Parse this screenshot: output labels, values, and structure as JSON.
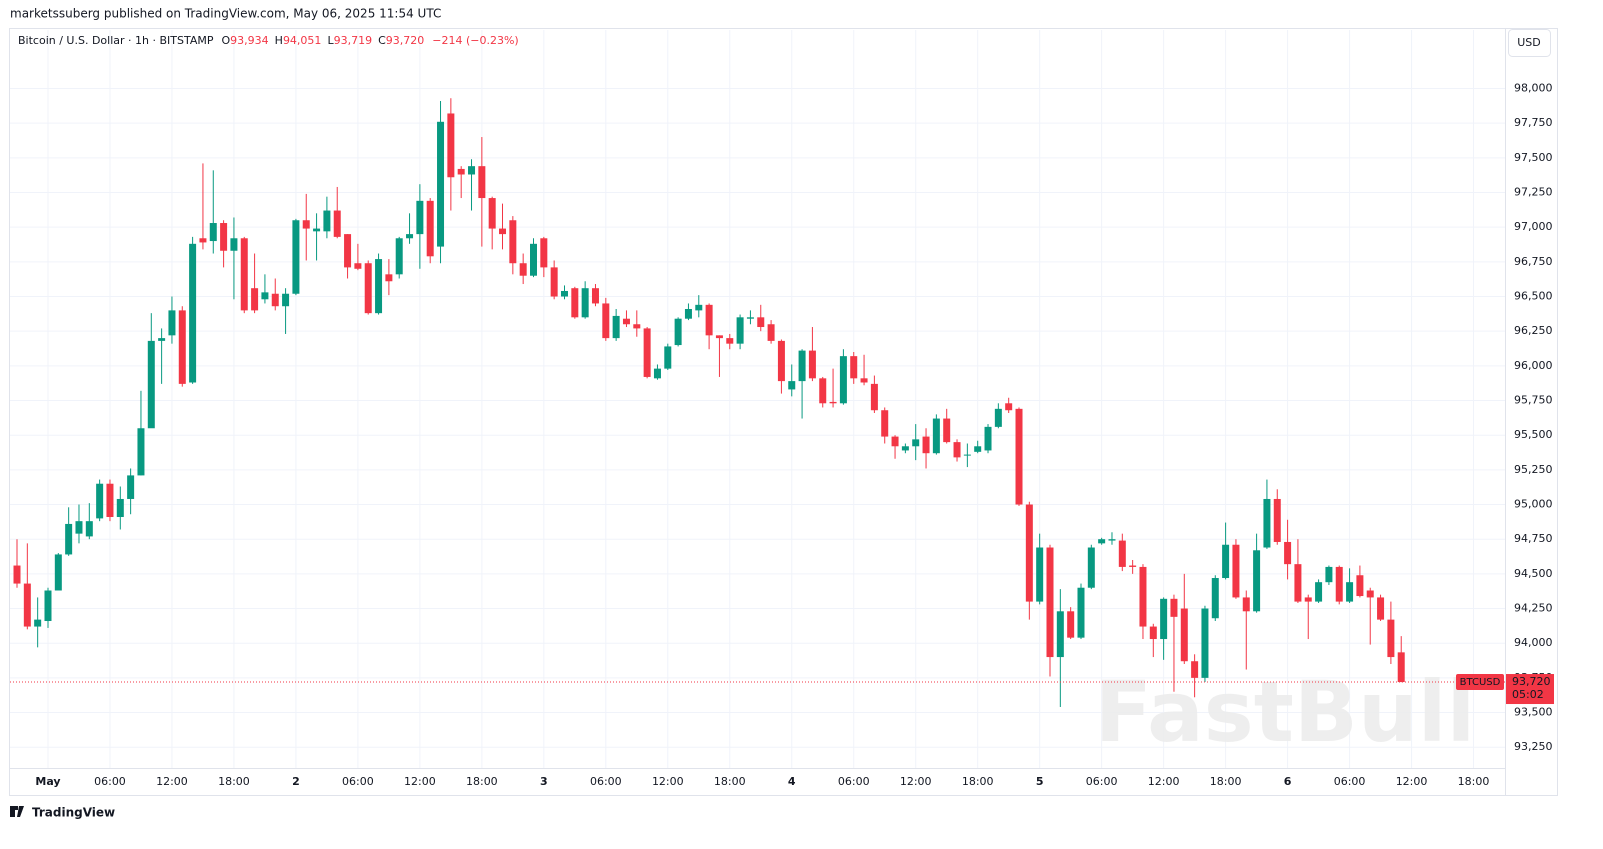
{
  "chart_data": {
    "type": "candlestick",
    "publisher": "marketssuberg published on TradingView.com, May 06, 2025 11:54 UTC",
    "title": "Bitcoin / U.S. Dollar · 1h · BITSTAMP",
    "ohlc_labels": [
      {
        "key": "O",
        "value": "93,934"
      },
      {
        "key": "H",
        "value": "94,051"
      },
      {
        "key": "L",
        "value": "93,719"
      },
      {
        "key": "C",
        "value": "93,720"
      }
    ],
    "change": "−214 (−0.23%)",
    "currency": "USD",
    "up_color": "#089981",
    "down_color": "#f23645",
    "grid": true,
    "categories": [
      null,
      null,
      null,
      "May",
      null,
      null,
      null,
      null,
      null,
      "06:00",
      null,
      null,
      null,
      null,
      null,
      "12:00",
      null,
      null,
      null,
      null,
      null,
      "18:00",
      null,
      null,
      null,
      null,
      null,
      "2",
      null,
      null,
      null,
      null,
      null,
      "06:00",
      null,
      null,
      null,
      null,
      null,
      "12:00",
      null,
      null,
      null,
      null,
      null,
      "18:00",
      null,
      null,
      null,
      null,
      null,
      "3",
      null,
      null,
      null,
      null,
      null,
      "06:00",
      null,
      null,
      null,
      null,
      null,
      "12:00",
      null,
      null,
      null,
      null,
      null,
      "18:00",
      null,
      null,
      null,
      null,
      null,
      "4",
      null,
      null,
      null,
      null,
      null,
      "06:00",
      null,
      null,
      null,
      null,
      null,
      "12:00",
      null,
      null,
      null,
      null,
      null,
      "18:00",
      null,
      null,
      null,
      null,
      null,
      "5",
      null,
      null,
      null,
      null,
      null,
      "06:00",
      null,
      null,
      null,
      null,
      null,
      "12:00",
      null,
      null,
      null,
      null,
      null,
      "18:00",
      null,
      null,
      null,
      null,
      null,
      "6",
      null,
      null,
      null,
      null,
      null,
      "06:00",
      null,
      null,
      null,
      null,
      null,
      "12:00",
      null,
      null,
      null,
      null,
      null,
      "18:00",
      null,
      null
    ],
    "open": [
      94560,
      94430,
      94120,
      94160,
      94380,
      94640,
      94790,
      94770,
      94900,
      95150,
      94910,
      95040,
      95210,
      95550,
      96180,
      96220,
      96400,
      95880,
      96920,
      96900,
      97030,
      96830,
      96920,
      96560,
      96480,
      96520,
      96430,
      96520,
      97050,
      96970,
      96970,
      97120,
      96950,
      96740,
      96740,
      96380,
      96660,
      96660,
      96920,
      96950,
      97190,
      96860,
      97820,
      97420,
      97380,
      97440,
      97210,
      96990,
      97050,
      96740,
      96650,
      96920,
      96710,
      96500,
      96560,
      96350,
      96560,
      96450,
      96200,
      96340,
      96300,
      96270,
      95910,
      95980,
      96150,
      96340,
      96400,
      96440,
      96220,
      96200,
      96160,
      96340,
      96350,
      96300,
      96180,
      95830,
      95890,
      96110,
      95910,
      95740,
      95730,
      96070,
      95910,
      95870,
      95680,
      95490,
      95390,
      95420,
      95490,
      95370,
      95620,
      95450,
      95360,
      95380,
      95390,
      95560,
      95730,
      95690,
      95000,
      94300,
      94690,
      93900,
      94230,
      94040,
      94400,
      94720,
      94740,
      94740,
      94560,
      94550,
      94120,
      94030,
      94320,
      94250,
      93870,
      93750,
      94180,
      94470,
      94710,
      94330,
      94230,
      94690,
      95040,
      94730,
      94570,
      94330,
      94300,
      94440,
      94550,
      94300,
      94490,
      94380,
      94330,
      94170,
      93934,
      null,
      null,
      null,
      null,
      null,
      null,
      null,
      null,
      null
    ],
    "high": [
      94750,
      94720,
      94330,
      94400,
      94650,
      94980,
      95000,
      95010,
      95180,
      95180,
      95130,
      95260,
      95820,
      96380,
      96270,
      96500,
      96430,
      96930,
      97460,
      97410,
      97050,
      97070,
      96930,
      96810,
      96660,
      96630,
      96560,
      97060,
      97240,
      97100,
      97220,
      97290,
      96950,
      96880,
      96760,
      96810,
      96770,
      96930,
      97100,
      97310,
      97210,
      97910,
      97930,
      97440,
      97490,
      97650,
      97220,
      97170,
      97080,
      96810,
      96920,
      96930,
      96760,
      96580,
      96570,
      96610,
      96590,
      96490,
      96410,
      96400,
      96400,
      96280,
      96010,
      96160,
      96350,
      96450,
      96510,
      96450,
      96220,
      96230,
      96370,
      96400,
      96440,
      96330,
      96190,
      96010,
      96120,
      96280,
      95920,
      95980,
      96120,
      96100,
      96080,
      95930,
      95700,
      95500,
      95440,
      95580,
      95550,
      95650,
      95690,
      95470,
      95440,
      95460,
      95580,
      95730,
      95770,
      95700,
      95020,
      94790,
      94710,
      94390,
      94260,
      94430,
      94710,
      94760,
      94800,
      94790,
      94600,
      94570,
      94140,
      94330,
      94350,
      94500,
      93920,
      94270,
      94490,
      94870,
      94750,
      94380,
      94790,
      95180,
      95110,
      94890,
      94750,
      94350,
      94460,
      94560,
      94560,
      94540,
      94560,
      94400,
      94350,
      94300,
      94051,
      null,
      null,
      null,
      null,
      null,
      null,
      null,
      null,
      null
    ],
    "low": [
      94400,
      94100,
      93970,
      94110,
      94380,
      94630,
      94720,
      94750,
      94880,
      94880,
      94820,
      94930,
      95210,
      95560,
      95870,
      96160,
      95850,
      95870,
      96840,
      96810,
      96710,
      96480,
      96380,
      96380,
      96450,
      96400,
      96230,
      96510,
      96760,
      96760,
      96920,
      96920,
      96630,
      96690,
      96370,
      96370,
      96510,
      96630,
      96880,
      96700,
      96740,
      96740,
      97120,
      97210,
      97120,
      96860,
      96840,
      96840,
      96660,
      96590,
      96640,
      96640,
      96480,
      96480,
      96340,
      96340,
      96430,
      96180,
      96180,
      96280,
      96210,
      95910,
      95900,
      95970,
      96140,
      96330,
      96350,
      96120,
      95920,
      96120,
      96120,
      96300,
      96250,
      96160,
      95800,
      95780,
      95620,
      95890,
      95700,
      95700,
      95720,
      95870,
      95860,
      95660,
      95440,
      95330,
      95370,
      95320,
      95260,
      95360,
      95440,
      95310,
      95270,
      95370,
      95370,
      95550,
      95660,
      94990,
      94170,
      94280,
      93760,
      93540,
      94030,
      94030,
      94390,
      94710,
      94710,
      94520,
      94500,
      94030,
      93900,
      93880,
      93650,
      93850,
      93610,
      93720,
      94160,
      94460,
      94320,
      93810,
      94220,
      94680,
      94710,
      94460,
      94290,
      94030,
      94290,
      94420,
      94280,
      94290,
      94330,
      93990,
      94160,
      93850,
      93719,
      null,
      null,
      null,
      null,
      null,
      null,
      null,
      null,
      null
    ],
    "close": [
      94430,
      94120,
      94170,
      94380,
      94640,
      94860,
      94880,
      94880,
      95150,
      94910,
      95040,
      95210,
      95550,
      96180,
      96200,
      96400,
      95870,
      96880,
      96890,
      97030,
      96830,
      96920,
      96400,
      96400,
      96530,
      96430,
      96520,
      97050,
      96990,
      96990,
      97120,
      96930,
      96710,
      96700,
      96380,
      96770,
      96610,
      96920,
      96950,
      97190,
      96790,
      97760,
      97360,
      97380,
      97440,
      97210,
      96990,
      96950,
      96740,
      96650,
      96880,
      96710,
      96500,
      96540,
      96350,
      96560,
      96450,
      96200,
      96360,
      96300,
      96270,
      95920,
      95980,
      96140,
      96340,
      96410,
      96440,
      96220,
      96200,
      96160,
      96350,
      96350,
      96280,
      96180,
      95890,
      95890,
      96110,
      95910,
      95730,
      95730,
      96070,
      95910,
      95880,
      95680,
      95490,
      95420,
      95420,
      95470,
      95370,
      95620,
      95450,
      95340,
      95360,
      95420,
      95560,
      95690,
      95680,
      95000,
      94300,
      94690,
      93900,
      94230,
      94040,
      94400,
      94690,
      94750,
      94750,
      94550,
      94550,
      94120,
      94030,
      94320,
      94190,
      93870,
      93750,
      94250,
      94470,
      94710,
      94330,
      94230,
      94670,
      95040,
      94730,
      94570,
      94300,
      94300,
      94440,
      94550,
      94300,
      94440,
      94340,
      94330,
      94170,
      93900,
      93720,
      null,
      null,
      null,
      null,
      null,
      null,
      null,
      null,
      null
    ],
    "ylim": [
      93100,
      98220
    ],
    "yticks": [
      {
        "value": 93250,
        "label": "93,250"
      },
      {
        "value": 93500,
        "label": "93,500"
      },
      {
        "value": 93750,
        "label": "93,750"
      },
      {
        "value": 94000,
        "label": "94,000"
      },
      {
        "value": 94250,
        "label": "94,250"
      },
      {
        "value": 94500,
        "label": "94,500"
      },
      {
        "value": 94750,
        "label": "94,750"
      },
      {
        "value": 95000,
        "label": "95,000"
      },
      {
        "value": 95250,
        "label": "95,250"
      },
      {
        "value": 95500,
        "label": "95,500"
      },
      {
        "value": 95750,
        "label": "95,750"
      },
      {
        "value": 96000,
        "label": "96,000"
      },
      {
        "value": 96250,
        "label": "96,250"
      },
      {
        "value": 96500,
        "label": "96,500"
      },
      {
        "value": 96750,
        "label": "96,750"
      },
      {
        "value": 97000,
        "label": "97,000"
      },
      {
        "value": 97250,
        "label": "97,250"
      },
      {
        "value": 97500,
        "label": "97,500"
      },
      {
        "value": 97750,
        "label": "97,750"
      },
      {
        "value": 98000,
        "label": "98,000"
      }
    ],
    "last_label": {
      "symbol": "BTCUSD",
      "price": "93,720",
      "countdown": "05:02"
    },
    "watermark": "FastBull",
    "footer": "TradingView"
  }
}
